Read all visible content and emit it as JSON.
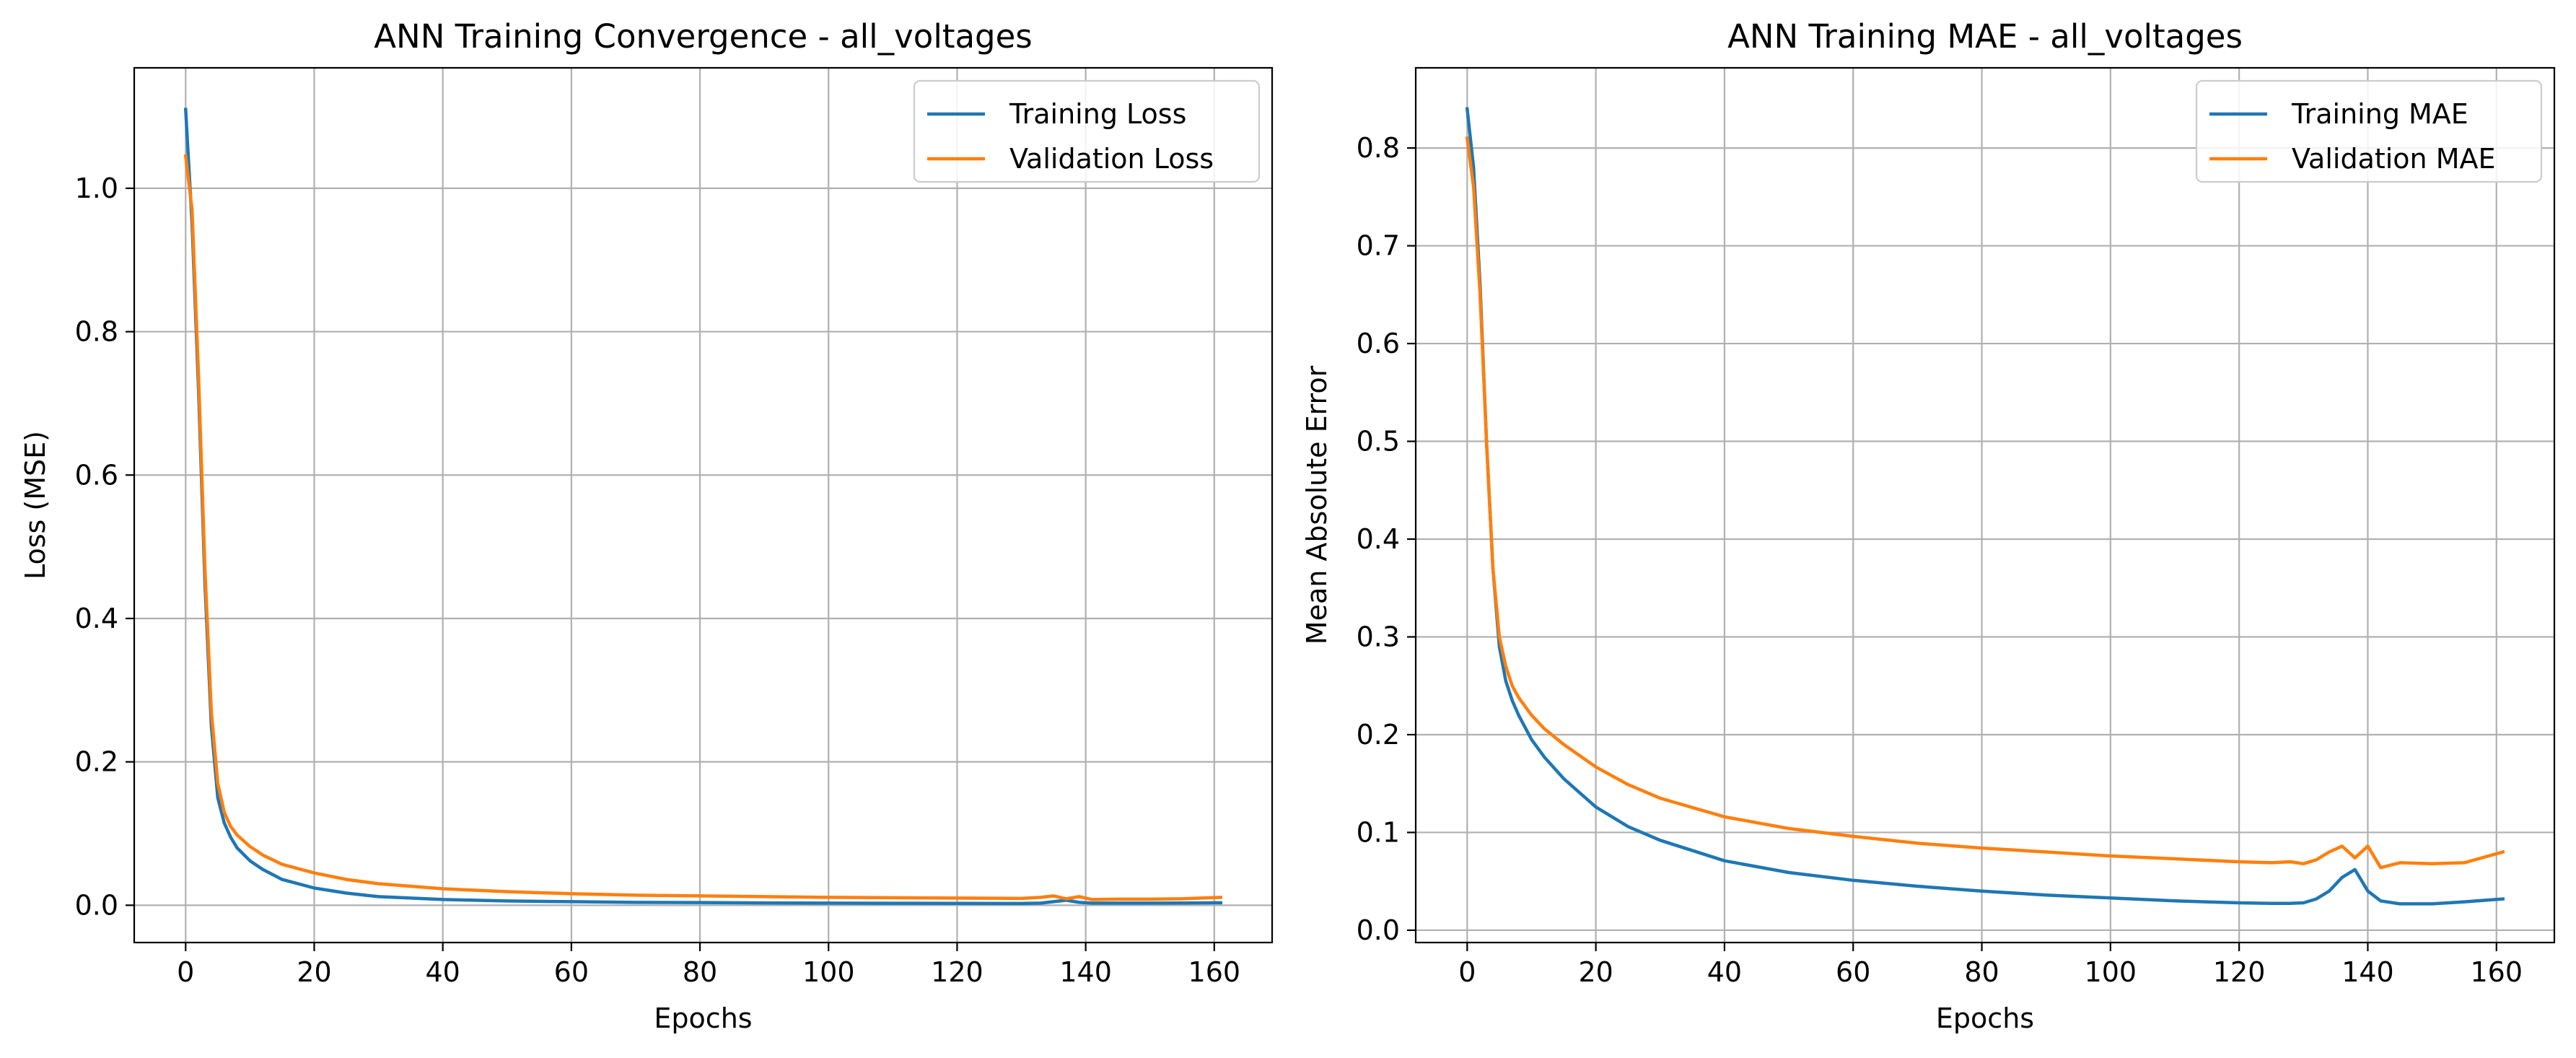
{
  "chart_data": [
    {
      "type": "line",
      "title": "ANN Training Convergence - all_voltages",
      "xlabel": "Epochs",
      "ylabel": "Loss (MSE)",
      "xlim": [
        -8,
        169
      ],
      "ylim": [
        -0.052,
        1.168
      ],
      "xticks": [
        0,
        20,
        40,
        60,
        80,
        100,
        120,
        140,
        160
      ],
      "yticks": [
        0.0,
        0.2,
        0.4,
        0.6,
        0.8,
        1.0
      ],
      "ytick_labels": [
        "0.0",
        "0.2",
        "0.4",
        "0.6",
        "0.8",
        "1.0"
      ],
      "grid": true,
      "legend_position": "top-right",
      "x": [
        0,
        1,
        2,
        3,
        4,
        5,
        6,
        7,
        8,
        10,
        12,
        15,
        20,
        25,
        30,
        40,
        50,
        60,
        70,
        80,
        90,
        100,
        110,
        120,
        130,
        133,
        135,
        137,
        139,
        141,
        145,
        150,
        155,
        161
      ],
      "series": [
        {
          "name": "Training Loss",
          "color": "#1f77b4",
          "values": [
            1.11,
            0.95,
            0.72,
            0.45,
            0.25,
            0.15,
            0.115,
            0.095,
            0.08,
            0.062,
            0.05,
            0.036,
            0.024,
            0.017,
            0.012,
            0.008,
            0.006,
            0.005,
            0.004,
            0.0038,
            0.0033,
            0.003,
            0.0028,
            0.0026,
            0.0025,
            0.003,
            0.005,
            0.007,
            0.004,
            0.003,
            0.003,
            0.003,
            0.0032,
            0.0035
          ]
        },
        {
          "name": "Validation Loss",
          "color": "#ff7f0e",
          "values": [
            1.045,
            0.97,
            0.74,
            0.47,
            0.27,
            0.17,
            0.13,
            0.11,
            0.098,
            0.082,
            0.07,
            0.057,
            0.045,
            0.036,
            0.03,
            0.023,
            0.019,
            0.016,
            0.014,
            0.013,
            0.012,
            0.011,
            0.0105,
            0.01,
            0.0095,
            0.011,
            0.013,
            0.009,
            0.012,
            0.008,
            0.0085,
            0.0085,
            0.009,
            0.011
          ]
        }
      ]
    },
    {
      "type": "line",
      "title": "ANN Training MAE - all_voltages",
      "xlabel": "Epochs",
      "ylabel": "Mean Absolute Error",
      "xlim": [
        -8,
        169
      ],
      "ylim": [
        -0.0126,
        0.882
      ],
      "xticks": [
        0,
        20,
        40,
        60,
        80,
        100,
        120,
        140,
        160
      ],
      "yticks": [
        0.0,
        0.1,
        0.2,
        0.3,
        0.4,
        0.5,
        0.6,
        0.7,
        0.8
      ],
      "ytick_labels": [
        "0.0",
        "0.1",
        "0.2",
        "0.3",
        "0.4",
        "0.5",
        "0.6",
        "0.7",
        "0.8"
      ],
      "grid": true,
      "legend_position": "top-right",
      "x": [
        0,
        1,
        2,
        3,
        4,
        5,
        6,
        7,
        8,
        10,
        12,
        15,
        20,
        25,
        30,
        40,
        50,
        60,
        70,
        80,
        90,
        100,
        110,
        120,
        125,
        128,
        130,
        132,
        134,
        136,
        138,
        140,
        142,
        145,
        150,
        155,
        161
      ],
      "series": [
        {
          "name": "Training MAE",
          "color": "#1f77b4",
          "values": [
            0.84,
            0.78,
            0.66,
            0.5,
            0.37,
            0.29,
            0.255,
            0.235,
            0.22,
            0.195,
            0.177,
            0.155,
            0.126,
            0.106,
            0.092,
            0.071,
            0.059,
            0.051,
            0.045,
            0.04,
            0.036,
            0.033,
            0.03,
            0.028,
            0.0275,
            0.0275,
            0.028,
            0.032,
            0.04,
            0.054,
            0.062,
            0.04,
            0.03,
            0.027,
            0.027,
            0.029,
            0.032
          ]
        },
        {
          "name": "Validation MAE",
          "color": "#ff7f0e",
          "values": [
            0.81,
            0.76,
            0.65,
            0.5,
            0.37,
            0.3,
            0.27,
            0.25,
            0.238,
            0.22,
            0.206,
            0.19,
            0.167,
            0.149,
            0.135,
            0.116,
            0.104,
            0.096,
            0.089,
            0.084,
            0.08,
            0.076,
            0.073,
            0.07,
            0.069,
            0.07,
            0.068,
            0.072,
            0.08,
            0.086,
            0.074,
            0.086,
            0.064,
            0.069,
            0.068,
            0.069,
            0.08
          ]
        }
      ]
    }
  ]
}
